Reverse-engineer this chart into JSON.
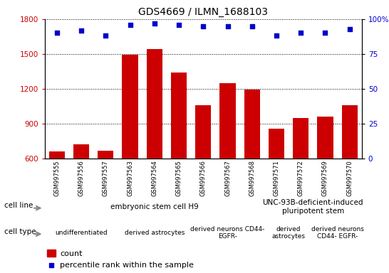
{
  "title": "GDS4669 / ILMN_1688103",
  "samples": [
    "GSM997555",
    "GSM997556",
    "GSM997557",
    "GSM997563",
    "GSM997564",
    "GSM997565",
    "GSM997566",
    "GSM997567",
    "GSM997568",
    "GSM997571",
    "GSM997572",
    "GSM997569",
    "GSM997570"
  ],
  "counts": [
    660,
    720,
    665,
    1490,
    1540,
    1340,
    1060,
    1250,
    1195,
    855,
    950,
    960,
    1060
  ],
  "percentiles": [
    90,
    92,
    88,
    96,
    97,
    96,
    95,
    95,
    95,
    88,
    90,
    90,
    93
  ],
  "bar_color": "#cc0000",
  "dot_color": "#0000cc",
  "ylim_left": [
    600,
    1800
  ],
  "ylim_right": [
    0,
    100
  ],
  "yticks_left": [
    600,
    900,
    1200,
    1500,
    1800
  ],
  "yticks_right": [
    0,
    25,
    50,
    75,
    100
  ],
  "tick_bg_color": "#bbbbbb",
  "cell_line_data": [
    {
      "text": "embryonic stem cell H9",
      "start": 0,
      "end": 8,
      "color": "#aaffaa"
    },
    {
      "text": "UNC-93B-deficient-induced\npluripotent stem",
      "start": 9,
      "end": 12,
      "color": "#55ee55"
    }
  ],
  "cell_type_data": [
    {
      "text": "undifferentiated",
      "start": 0,
      "end": 2,
      "color": "#ffaaff"
    },
    {
      "text": "derived astrocytes",
      "start": 3,
      "end": 5,
      "color": "#ffaaff"
    },
    {
      "text": "derived neurons CD44-\nEGFR-",
      "start": 6,
      "end": 8,
      "color": "#ee55ee"
    },
    {
      "text": "derived\nastrocytes",
      "start": 9,
      "end": 10,
      "color": "#ffaaff"
    },
    {
      "text": "derived neurons\nCD44- EGFR-",
      "start": 11,
      "end": 12,
      "color": "#ee55ee"
    }
  ]
}
